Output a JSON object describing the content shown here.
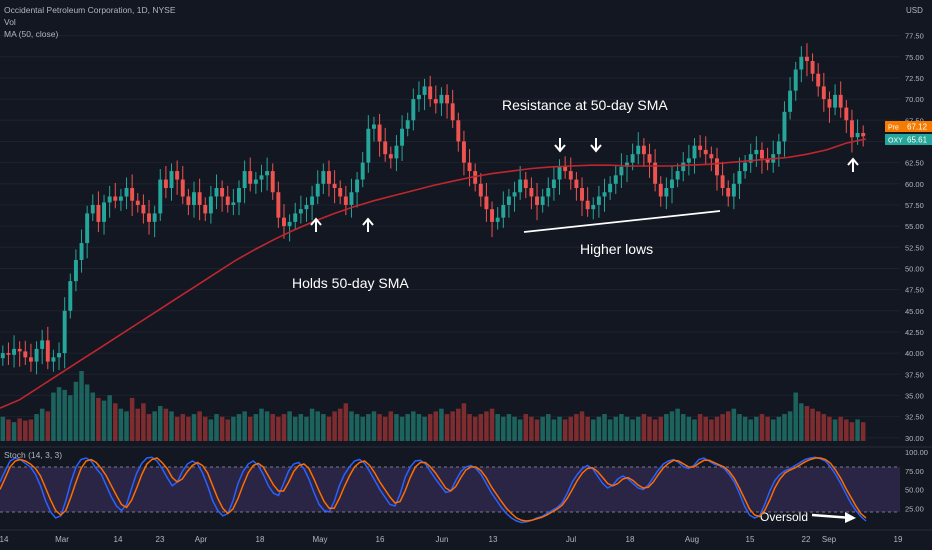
{
  "header": {
    "title": "Occidental Petroleum Corporation, 1D, NYSE",
    "vol_label": "Vol",
    "ma_label": "MA (50, close)",
    "currency": "USD"
  },
  "stoch": {
    "label": "Stoch (14, 3, 3)",
    "k": [
      60,
      75,
      88,
      92,
      90,
      85,
      80,
      70,
      55,
      35,
      20,
      12,
      15,
      35,
      60,
      80,
      90,
      92,
      88,
      78,
      70,
      55,
      40,
      28,
      22,
      30,
      52,
      72,
      85,
      92,
      93,
      88,
      78,
      66,
      55,
      60,
      74,
      84,
      88,
      84,
      72,
      55,
      35,
      22,
      15,
      18,
      35,
      58,
      74,
      84,
      88,
      82,
      70,
      55,
      45,
      42,
      58,
      75,
      84,
      86,
      78,
      64,
      46,
      30,
      22,
      20,
      34,
      55,
      70,
      80,
      88,
      90,
      85,
      74,
      62,
      50,
      40,
      30,
      28,
      44,
      66,
      80,
      88,
      89,
      84,
      74,
      64,
      55,
      46,
      48,
      62,
      74,
      80,
      82,
      78,
      70,
      58,
      46,
      36,
      26,
      18,
      12,
      8,
      6,
      7,
      9,
      12,
      14,
      18,
      22,
      26,
      32,
      45,
      60,
      70,
      78,
      82,
      78,
      68,
      58,
      52,
      56,
      64,
      68,
      64,
      58,
      52,
      50,
      56,
      66,
      76,
      84,
      88,
      90,
      86,
      80,
      78,
      82,
      90,
      92,
      88,
      84,
      82,
      78,
      70,
      60,
      45,
      28,
      16,
      12,
      15,
      30,
      48,
      62,
      70,
      75,
      78,
      82,
      86,
      90,
      92,
      93,
      91,
      88,
      80,
      70,
      58,
      45,
      32,
      22,
      14,
      8
    ],
    "d": [
      50,
      65,
      80,
      88,
      90,
      88,
      84,
      78,
      68,
      52,
      36,
      22,
      16,
      22,
      40,
      60,
      78,
      88,
      90,
      86,
      78,
      68,
      55,
      42,
      30,
      26,
      36,
      52,
      70,
      84,
      90,
      92,
      86,
      78,
      66,
      60,
      64,
      74,
      82,
      86,
      82,
      72,
      55,
      38,
      25,
      18,
      24,
      38,
      56,
      72,
      82,
      85,
      80,
      68,
      56,
      48,
      48,
      60,
      74,
      82,
      84,
      78,
      64,
      48,
      34,
      25,
      25,
      38,
      54,
      68,
      80,
      86,
      88,
      82,
      72,
      60,
      50,
      40,
      32,
      34,
      48,
      66,
      80,
      86,
      86,
      80,
      72,
      62,
      52,
      48,
      54,
      66,
      76,
      80,
      80,
      75,
      66,
      54,
      44,
      34,
      25,
      18,
      12,
      9,
      8,
      9,
      11,
      13,
      16,
      20,
      24,
      29,
      38,
      50,
      62,
      72,
      78,
      79,
      74,
      66,
      58,
      55,
      58,
      64,
      66,
      62,
      56,
      52,
      53,
      60,
      70,
      79,
      85,
      89,
      88,
      84,
      80,
      80,
      85,
      89,
      89,
      86,
      83,
      80,
      74,
      65,
      52,
      38,
      24,
      16,
      14,
      22,
      36,
      52,
      64,
      72,
      76,
      79,
      83,
      87,
      90,
      92,
      92,
      90,
      85,
      76,
      65,
      52,
      40,
      28,
      18,
      12
    ],
    "levels": [
      20,
      80
    ],
    "ticks": [
      "100.00",
      "75.00",
      "50.00",
      "25.00"
    ],
    "ylim": [
      0,
      100
    ]
  },
  "prices": {
    "last_close": "65.61",
    "last_close_tag": "OXY",
    "pre": "67.12",
    "pre_tag": "Pre"
  },
  "annotations": {
    "holds": "Holds 50-day SMA",
    "resistance": "Resistance at 50-day SMA",
    "higher_lows": "Higher lows",
    "oversold": "Oversold"
  },
  "chart_data": {
    "type": "candlestick",
    "title": "Occidental Petroleum Corporation, 1D, NYSE",
    "ylabel": "USD",
    "ylim": [
      29.5,
      81
    ],
    "y_ticks": [
      30,
      32.5,
      35,
      37.5,
      40,
      42.5,
      45,
      47.5,
      50,
      52.5,
      55,
      57.5,
      60,
      62.5,
      65,
      67.5,
      70,
      72.5,
      75,
      77.5
    ],
    "x_tick_labels": [
      "14",
      "Mar",
      "14",
      "23",
      "Apr",
      "18",
      "May",
      "16",
      "Jun",
      "13",
      "Jul",
      "18",
      "Aug",
      "15",
      "22",
      "Sep",
      "19"
    ],
    "closes": [
      40.0,
      39.8,
      40.5,
      40.2,
      39.5,
      39.0,
      40.5,
      41.5,
      39.0,
      39.5,
      40.0,
      45.0,
      48.5,
      51.0,
      53.0,
      56.5,
      57.5,
      55.5,
      57.8,
      58.5,
      58.0,
      58.5,
      59.5,
      58.0,
      57.5,
      56.5,
      55.5,
      56.5,
      60.5,
      59.5,
      61.5,
      60.5,
      58.5,
      57.5,
      59.0,
      57.5,
      56.5,
      58.5,
      59.5,
      58.5,
      57.5,
      57.8,
      59.5,
      61.5,
      60.0,
      60.5,
      61.0,
      61.5,
      59.0,
      56.0,
      55.0,
      55.5,
      56.5,
      57.0,
      57.5,
      58.5,
      60.0,
      61.5,
      60.0,
      59.5,
      58.5,
      57.5,
      59.0,
      60.5,
      62.5,
      66.5,
      67.0,
      65.0,
      63.5,
      63.0,
      64.5,
      66.5,
      67.5,
      70.0,
      70.5,
      71.5,
      70.0,
      69.5,
      70.5,
      69.5,
      67.5,
      65.0,
      62.5,
      61.5,
      60.0,
      58.5,
      57.0,
      55.5,
      56.0,
      57.5,
      58.5,
      59.0,
      60.5,
      59.5,
      58.5,
      57.5,
      58.5,
      59.5,
      60.5,
      62.0,
      61.5,
      60.5,
      59.5,
      58.0,
      57.0,
      57.5,
      58.5,
      59.0,
      60.0,
      61.0,
      62.0,
      62.5,
      63.5,
      64.5,
      63.5,
      62.5,
      60.0,
      58.5,
      59.5,
      60.5,
      61.5,
      62.5,
      63.0,
      64.5,
      64.0,
      63.5,
      63.0,
      61.0,
      59.5,
      58.5,
      60.0,
      61.5,
      62.5,
      63.5,
      64.0,
      63.0,
      62.5,
      63.5,
      65.0,
      68.5,
      71.0,
      73.5,
      75.0,
      74.5,
      73.0,
      71.5,
      70.0,
      69.0,
      70.5,
      69.0,
      67.5,
      65.5,
      66.0,
      65.61
    ],
    "vol_relative": [
      0.45,
      0.4,
      0.35,
      0.42,
      0.38,
      0.4,
      0.5,
      0.6,
      0.55,
      0.9,
      1.0,
      0.95,
      0.85,
      1.1,
      1.3,
      1.05,
      0.9,
      0.8,
      0.75,
      0.85,
      0.7,
      0.6,
      0.55,
      0.8,
      0.6,
      0.7,
      0.5,
      0.55,
      0.65,
      0.6,
      0.55,
      0.45,
      0.5,
      0.45,
      0.5,
      0.55,
      0.45,
      0.4,
      0.5,
      0.45,
      0.4,
      0.45,
      0.5,
      0.55,
      0.45,
      0.5,
      0.6,
      0.55,
      0.5,
      0.45,
      0.5,
      0.55,
      0.45,
      0.5,
      0.45,
      0.6,
      0.55,
      0.5,
      0.45,
      0.55,
      0.6,
      0.7,
      0.55,
      0.5,
      0.45,
      0.5,
      0.55,
      0.5,
      0.45,
      0.55,
      0.5,
      0.45,
      0.5,
      0.55,
      0.5,
      0.45,
      0.5,
      0.55,
      0.6,
      0.5,
      0.55,
      0.6,
      0.7,
      0.5,
      0.45,
      0.5,
      0.55,
      0.6,
      0.5,
      0.45,
      0.5,
      0.45,
      0.4,
      0.5,
      0.45,
      0.4,
      0.45,
      0.5,
      0.4,
      0.45,
      0.4,
      0.45,
      0.5,
      0.55,
      0.45,
      0.4,
      0.45,
      0.5,
      0.4,
      0.45,
      0.5,
      0.45,
      0.4,
      0.45,
      0.5,
      0.45,
      0.4,
      0.45,
      0.5,
      0.55,
      0.6,
      0.5,
      0.45,
      0.4,
      0.5,
      0.45,
      0.4,
      0.45,
      0.5,
      0.55,
      0.6,
      0.5,
      0.45,
      0.4,
      0.45,
      0.5,
      0.45,
      0.4,
      0.45,
      0.5,
      0.55,
      0.9,
      0.7,
      0.65,
      0.6,
      0.55,
      0.5,
      0.45,
      0.4,
      0.45,
      0.4,
      0.35,
      0.4,
      0.35,
      0.38,
      0.35
    ],
    "ma50": [
      33.5,
      34.5,
      36,
      37.5,
      39,
      40.5,
      42,
      43.5,
      45,
      46.5,
      48,
      49.5,
      51,
      52.3,
      53.5,
      54.6,
      55.6,
      56.5,
      57.3,
      58,
      58.6,
      59.2,
      59.8,
      60.3,
      60.8,
      61.2,
      61.5,
      61.8,
      62,
      62.1,
      62.2,
      62.2,
      62.1,
      62.1,
      62.1,
      62.2,
      62.3,
      62.5,
      62.7,
      62.9,
      63.1,
      63.5,
      64,
      64.8,
      65.3
    ],
    "series": [
      {
        "name": "MA (50, close)",
        "type": "line",
        "color": "#c0262f"
      },
      {
        "name": "Vol",
        "type": "bar"
      },
      {
        "name": "Stoch (14, 3, 3)",
        "type": "oscillator"
      }
    ],
    "colors": {
      "up": "#26a69a",
      "down": "#ef5350",
      "ma": "#c0262f",
      "stoch_k": "#2962ff",
      "stoch_d": "#ff6d00",
      "stoch_band": "#7e57c2"
    }
  }
}
